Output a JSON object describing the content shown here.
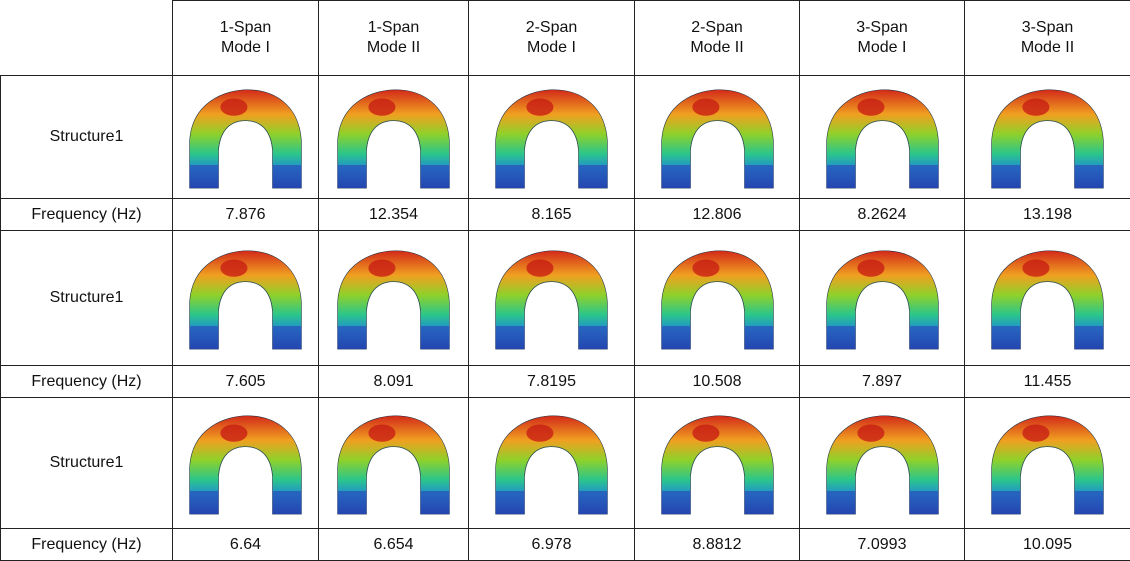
{
  "table": {
    "columns": [
      {
        "span": "1-Span",
        "mode": "Mode I"
      },
      {
        "span": "1-Span",
        "mode": "Mode II"
      },
      {
        "span": "2-Span",
        "mode": "Mode I"
      },
      {
        "span": "2-Span",
        "mode": "Mode II"
      },
      {
        "span": "3-Span",
        "mode": "Mode I"
      },
      {
        "span": "3-Span",
        "mode": "Mode II"
      }
    ],
    "rows": [
      {
        "label": "Structure1",
        "frequency_label": "Frequency (Hz)",
        "frequencies": [
          7.876,
          12.354,
          8.165,
          12.806,
          8.2624,
          13.198
        ]
      },
      {
        "label": "Structure1",
        "frequency_label": "Frequency (Hz)",
        "frequencies": [
          7.605,
          8.091,
          7.8195,
          10.508,
          7.897,
          11.455
        ]
      },
      {
        "label": "Structure1",
        "frequency_label": "Frequency (Hz)",
        "frequencies": [
          6.64,
          6.654,
          6.978,
          8.8812,
          7.0993,
          10.095
        ]
      }
    ]
  }
}
